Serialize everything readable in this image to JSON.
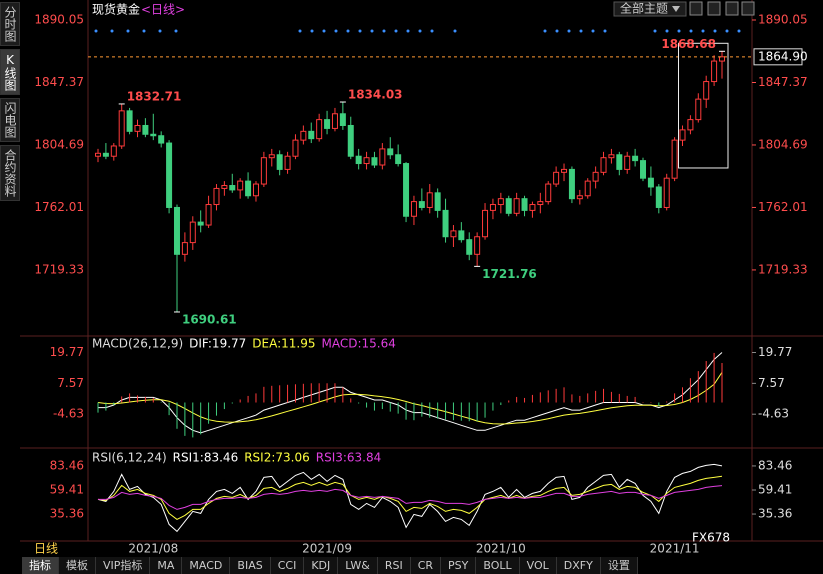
{
  "app": {
    "sidebar_tabs": [
      "分时图",
      "K线图",
      "闪电图",
      "合约资料"
    ],
    "theme_button": "全部主题",
    "period_label": "日线",
    "toolbar_tabs": [
      "指标",
      "模板",
      "VIP指标",
      "MA",
      "MACD",
      "BIAS",
      "CCI",
      "KDJ",
      "LW&",
      "RSI",
      "CR",
      "PSY",
      "BOLL",
      "VOL",
      "DXFY",
      "设置"
    ],
    "watermark": "FX678"
  },
  "chart_data": [
    {
      "type": "candlestick",
      "title": "现货黄金",
      "subtitle": "<日线>",
      "up_color": "#ff3b3b",
      "down_color": "#3fcf7f",
      "ylim": [
        1678.3,
        1900.3
      ],
      "yticks": [
        1890.05,
        1847.37,
        1804.69,
        1762.01,
        1719.33
      ],
      "current_price_label": "1864.90",
      "x_labels": [
        "2021/08",
        "2021/09",
        "2021/10",
        "2021/11"
      ],
      "candles": [
        [
          1797,
          1802,
          1793,
          1799
        ],
        [
          1799,
          1806,
          1795,
          1797
        ],
        [
          1797,
          1806,
          1794,
          1804
        ],
        [
          1804,
          1832.71,
          1802,
          1828
        ],
        [
          1828,
          1830,
          1812,
          1814
        ],
        [
          1814,
          1822,
          1810,
          1818
        ],
        [
          1818,
          1823,
          1810,
          1812
        ],
        [
          1812,
          1826,
          1808,
          1811
        ],
        [
          1811,
          1814,
          1803,
          1806
        ],
        [
          1806,
          1808,
          1758,
          1762
        ],
        [
          1762,
          1764,
          1690.61,
          1730
        ],
        [
          1730,
          1745,
          1725,
          1738
        ],
        [
          1738,
          1756,
          1733,
          1752
        ],
        [
          1752,
          1760,
          1745,
          1750
        ],
        [
          1750,
          1770,
          1748,
          1764
        ],
        [
          1764,
          1778,
          1760,
          1775
        ],
        [
          1775,
          1780,
          1770,
          1777
        ],
        [
          1777,
          1785,
          1772,
          1774
        ],
        [
          1774,
          1782,
          1768,
          1780
        ],
        [
          1780,
          1786,
          1768,
          1770
        ],
        [
          1770,
          1780,
          1766,
          1778
        ],
        [
          1778,
          1800,
          1776,
          1796
        ],
        [
          1796,
          1802,
          1790,
          1798
        ],
        [
          1798,
          1801,
          1784,
          1788
        ],
        [
          1788,
          1800,
          1785,
          1797
        ],
        [
          1797,
          1812,
          1795,
          1808
        ],
        [
          1808,
          1818,
          1805,
          1814
        ],
        [
          1814,
          1820,
          1806,
          1809
        ],
        [
          1809,
          1826,
          1807,
          1822
        ],
        [
          1822,
          1828,
          1812,
          1816
        ],
        [
          1816,
          1830,
          1814,
          1826
        ],
        [
          1826,
          1834.03,
          1815,
          1818
        ],
        [
          1818,
          1824,
          1795,
          1797
        ],
        [
          1797,
          1802,
          1788,
          1792
        ],
        [
          1792,
          1800,
          1788,
          1796
        ],
        [
          1796,
          1800,
          1789,
          1791
        ],
        [
          1791,
          1806,
          1788,
          1802
        ],
        [
          1802,
          1810,
          1795,
          1798
        ],
        [
          1798,
          1805,
          1790,
          1792
        ],
        [
          1792,
          1793,
          1752,
          1756
        ],
        [
          1756,
          1770,
          1750,
          1766
        ],
        [
          1766,
          1775,
          1760,
          1762
        ],
        [
          1762,
          1778,
          1758,
          1772
        ],
        [
          1772,
          1775,
          1755,
          1760
        ],
        [
          1760,
          1768,
          1738,
          1742
        ],
        [
          1742,
          1750,
          1735,
          1746
        ],
        [
          1746,
          1752,
          1738,
          1740
        ],
        [
          1740,
          1745,
          1726,
          1730
        ],
        [
          1730,
          1745,
          1721.76,
          1742
        ],
        [
          1742,
          1765,
          1740,
          1760
        ],
        [
          1760,
          1768,
          1754,
          1764
        ],
        [
          1764,
          1772,
          1758,
          1768
        ],
        [
          1768,
          1770,
          1756,
          1758
        ],
        [
          1758,
          1772,
          1756,
          1768
        ],
        [
          1768,
          1770,
          1756,
          1760
        ],
        [
          1760,
          1766,
          1755,
          1764
        ],
        [
          1764,
          1772,
          1758,
          1766
        ],
        [
          1766,
          1780,
          1764,
          1778
        ],
        [
          1778,
          1790,
          1776,
          1786
        ],
        [
          1786,
          1792,
          1780,
          1788
        ],
        [
          1788,
          1790,
          1765,
          1768
        ],
        [
          1768,
          1774,
          1764,
          1770
        ],
        [
          1770,
          1782,
          1768,
          1780
        ],
        [
          1780,
          1790,
          1775,
          1786
        ],
        [
          1786,
          1800,
          1784,
          1796
        ],
        [
          1796,
          1802,
          1792,
          1798
        ],
        [
          1798,
          1800,
          1784,
          1788
        ],
        [
          1788,
          1800,
          1785,
          1797
        ],
        [
          1797,
          1802,
          1790,
          1794
        ],
        [
          1794,
          1796,
          1780,
          1782
        ],
        [
          1782,
          1790,
          1770,
          1776
        ],
        [
          1776,
          1778,
          1758,
          1762
        ],
        [
          1762,
          1785,
          1760,
          1782
        ],
        [
          1782,
          1810,
          1780,
          1808
        ],
        [
          1808,
          1818,
          1804,
          1815
        ],
        [
          1815,
          1825,
          1812,
          1822
        ],
        [
          1822,
          1840,
          1820,
          1836
        ],
        [
          1836,
          1852,
          1830,
          1848
        ],
        [
          1848,
          1866,
          1845,
          1862
        ],
        [
          1862,
          1868.68,
          1850,
          1864.9
        ]
      ]
    },
    {
      "type": "macd",
      "title": "MACD(26,12,9)",
      "ylim": [
        -17.2,
        25.5
      ],
      "yticks": [
        19.77,
        7.57,
        -4.63
      ],
      "series": [
        {
          "name": "DIF:19.77",
          "color": "#ffffff",
          "values": [
            -2,
            -2,
            -1,
            1,
            2,
            2,
            2,
            2,
            1,
            -2,
            -6,
            -9,
            -11,
            -12,
            -11,
            -10,
            -9,
            -8,
            -7,
            -6,
            -5,
            -3,
            -2,
            -1,
            0,
            1,
            2,
            3,
            4,
            5,
            6,
            6,
            4,
            3,
            2,
            1,
            1,
            0,
            -1,
            -3,
            -4,
            -4,
            -5,
            -6,
            -7,
            -8,
            -9,
            -10,
            -11,
            -11,
            -10,
            -9,
            -8,
            -7,
            -7,
            -6,
            -5,
            -4,
            -3,
            -2,
            -3,
            -3,
            -2,
            -1,
            0,
            0,
            0,
            0,
            0,
            -1,
            -1,
            -2,
            -1,
            1,
            3,
            6,
            9,
            13,
            17,
            19.77
          ]
        },
        {
          "name": "DEA:11.95",
          "color": "#ffff40",
          "values": [
            0,
            -0.4,
            -0.5,
            -0.2,
            0.2,
            0.6,
            0.9,
            1.1,
            1.1,
            0.5,
            -0.8,
            -2.4,
            -4.1,
            -5.7,
            -6.8,
            -7.4,
            -7.7,
            -7.8,
            -7.6,
            -7.3,
            -6.8,
            -6.1,
            -5.3,
            -4.4,
            -3.5,
            -2.6,
            -1.7,
            -0.8,
            0.2,
            1.2,
            2.2,
            3,
            3.2,
            3.2,
            3,
            2.6,
            2.3,
            1.8,
            1.2,
            0.4,
            -0.5,
            -1.2,
            -2,
            -2.8,
            -3.6,
            -4.5,
            -5.4,
            -6.3,
            -7.3,
            -8,
            -8.4,
            -8.5,
            -8.4,
            -8.1,
            -7.9,
            -7.5,
            -7,
            -6.4,
            -5.7,
            -5,
            -4.6,
            -4.3,
            -3.8,
            -3.3,
            -2.7,
            -2.1,
            -1.7,
            -1.3,
            -1.1,
            -1.1,
            -1.1,
            -1.3,
            -1.2,
            -0.8,
            0,
            1.2,
            2.8,
            4.8,
            7.2,
            11.95
          ]
        },
        {
          "name": "MACD:15.64",
          "color": "#e040e0",
          "up_color": "#ff3b3b",
          "down_color": "#3fcf7f",
          "values": [
            -4,
            -3.2,
            -1,
            2.4,
            3.6,
            2.8,
            2.2,
            1.8,
            -0.2,
            -5,
            -10.4,
            -13.2,
            -13.8,
            -12.6,
            -8.4,
            -5.2,
            -2.6,
            -0.4,
            1.2,
            2.6,
            3.6,
            6.2,
            6.6,
            6.8,
            7,
            7.2,
            7.4,
            7.6,
            7.6,
            7.6,
            7.6,
            6,
            1.6,
            -0.4,
            -2,
            -3.2,
            -2.6,
            -3.6,
            -4.4,
            -6.8,
            -7,
            -5.6,
            -6,
            -6.4,
            -6.8,
            -7,
            -7.2,
            -7.4,
            -7.4,
            -6,
            -3.2,
            -1,
            0.8,
            2.2,
            1.8,
            3,
            4,
            4.8,
            5.4,
            6,
            3.2,
            2.6,
            3.6,
            4.6,
            5.4,
            4.2,
            3.4,
            2.6,
            2.2,
            0.2,
            0.2,
            -1.4,
            0.4,
            3.6,
            6,
            9.6,
            12.4,
            16.4,
            19.6,
            15.64
          ]
        }
      ]
    },
    {
      "type": "line",
      "title": "RSI(6,12,24)",
      "ylim": [
        11.4,
        97.4
      ],
      "yticks": [
        83.46,
        59.41,
        35.36
      ],
      "series": [
        {
          "name": "RSI1:83.46",
          "color": "#ffffff",
          "values": [
            50,
            48,
            58,
            75,
            60,
            63,
            55,
            52,
            45,
            25,
            18,
            28,
            38,
            36,
            50,
            58,
            60,
            56,
            62,
            50,
            58,
            72,
            73,
            62,
            68,
            74,
            77,
            70,
            75,
            68,
            74,
            70,
            45,
            40,
            46,
            42,
            52,
            48,
            42,
            22,
            35,
            33,
            45,
            38,
            28,
            32,
            30,
            24,
            38,
            55,
            58,
            62,
            52,
            60,
            52,
            56,
            58,
            66,
            72,
            73,
            50,
            52,
            62,
            68,
            74,
            75,
            62,
            70,
            66,
            54,
            48,
            36,
            58,
            72,
            76,
            78,
            82,
            84,
            85,
            83.46
          ]
        },
        {
          "name": "RSI2:73.06",
          "color": "#ffff40",
          "values": [
            50,
            49,
            54,
            64,
            58,
            60,
            56,
            54,
            50,
            36,
            30,
            34,
            40,
            40,
            46,
            51,
            53,
            52,
            55,
            51,
            54,
            61,
            62,
            58,
            61,
            65,
            67,
            64,
            67,
            64,
            67,
            65,
            54,
            50,
            52,
            50,
            53,
            51,
            48,
            38,
            42,
            41,
            46,
            43,
            38,
            40,
            39,
            36,
            42,
            50,
            52,
            54,
            51,
            54,
            51,
            53,
            54,
            58,
            61,
            62,
            54,
            55,
            58,
            61,
            64,
            65,
            60,
            63,
            62,
            57,
            54,
            48,
            56,
            62,
            64,
            66,
            69,
            71,
            72,
            73.06
          ]
        },
        {
          "name": "RSI3:63.84",
          "color": "#e040e0",
          "values": [
            50,
            50,
            52,
            57,
            55,
            56,
            54,
            53,
            51,
            44,
            40,
            42,
            45,
            45,
            48,
            50,
            51,
            51,
            52,
            51,
            52,
            55,
            56,
            55,
            56,
            58,
            59,
            58,
            59,
            58,
            60,
            59,
            54,
            52,
            53,
            52,
            53,
            52,
            51,
            46,
            47,
            47,
            49,
            48,
            46,
            46,
            46,
            45,
            47,
            50,
            51,
            52,
            51,
            52,
            51,
            52,
            52,
            54,
            56,
            56,
            53,
            53,
            55,
            56,
            57,
            58,
            56,
            57,
            57,
            55,
            54,
            51,
            54,
            57,
            58,
            59,
            60,
            62,
            63,
            63.84
          ]
        }
      ]
    }
  ]
}
